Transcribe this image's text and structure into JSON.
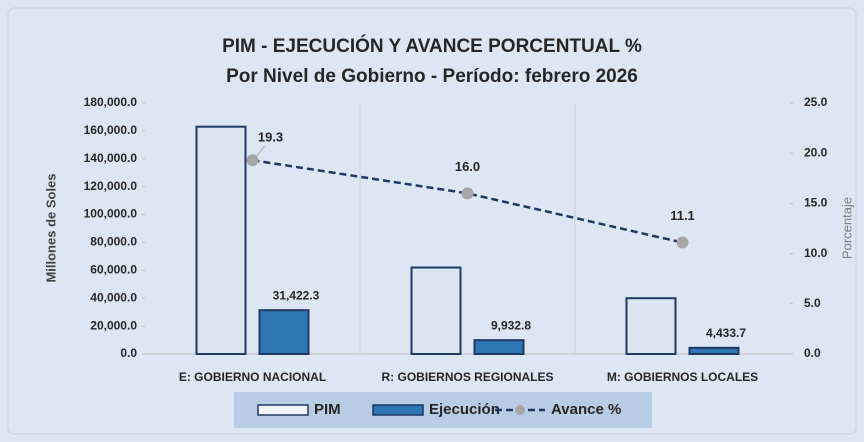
{
  "chart_data": {
    "type": "bar",
    "title": "PIM - EJECUCIÓN Y AVANCE PORCENTUAL %",
    "subtitle": "Por Nivel de Gobierno - Período: febrero 2026",
    "ylabel": "Millones de Soles",
    "y2label": "Porcentaje",
    "categories": [
      "E: GOBIERNO NACIONAL",
      "R: GOBIERNOS REGIONALES",
      "M: GOBIERNOS LOCALES"
    ],
    "series": [
      {
        "name": "PIM",
        "type": "bar",
        "color": "#dce6f2",
        "values": [
          163000,
          62000,
          40000
        ]
      },
      {
        "name": "Ejecución",
        "type": "bar",
        "color": "#2e75b6",
        "values": [
          31422.3,
          9932.8,
          4433.7
        ],
        "value_labels": [
          "31,422.3",
          "9,932.8",
          "4,433.7"
        ]
      },
      {
        "name": "Avance %",
        "type": "line",
        "axis": "y2",
        "color": "#1f3864",
        "values": [
          19.3,
          16.0,
          11.1
        ],
        "value_labels": [
          "19.3",
          "16.0",
          "11.1"
        ]
      }
    ],
    "ylim": [
      0,
      180000
    ],
    "yticks": [
      {
        "value": 0,
        "label": "0.0"
      },
      {
        "value": 20000,
        "label": "20,000.0"
      },
      {
        "value": 40000,
        "label": "40,000.0"
      },
      {
        "value": 60000,
        "label": "60,000.0"
      },
      {
        "value": 80000,
        "label": "80,000.0"
      },
      {
        "value": 100000,
        "label": "100,000.0"
      },
      {
        "value": 120000,
        "label": "120,000.0"
      },
      {
        "value": 140000,
        "label": "140,000.0"
      },
      {
        "value": 160000,
        "label": "160,000.0"
      },
      {
        "value": 180000,
        "label": "180,000.0"
      }
    ],
    "y2lim": [
      0,
      25
    ],
    "y2ticks": [
      {
        "value": 0,
        "label": "0.0"
      },
      {
        "value": 5,
        "label": "5.0"
      },
      {
        "value": 10,
        "label": "10.0"
      },
      {
        "value": 15,
        "label": "15.0"
      },
      {
        "value": 20,
        "label": "20.0"
      },
      {
        "value": 25,
        "label": "25.0"
      }
    ]
  }
}
